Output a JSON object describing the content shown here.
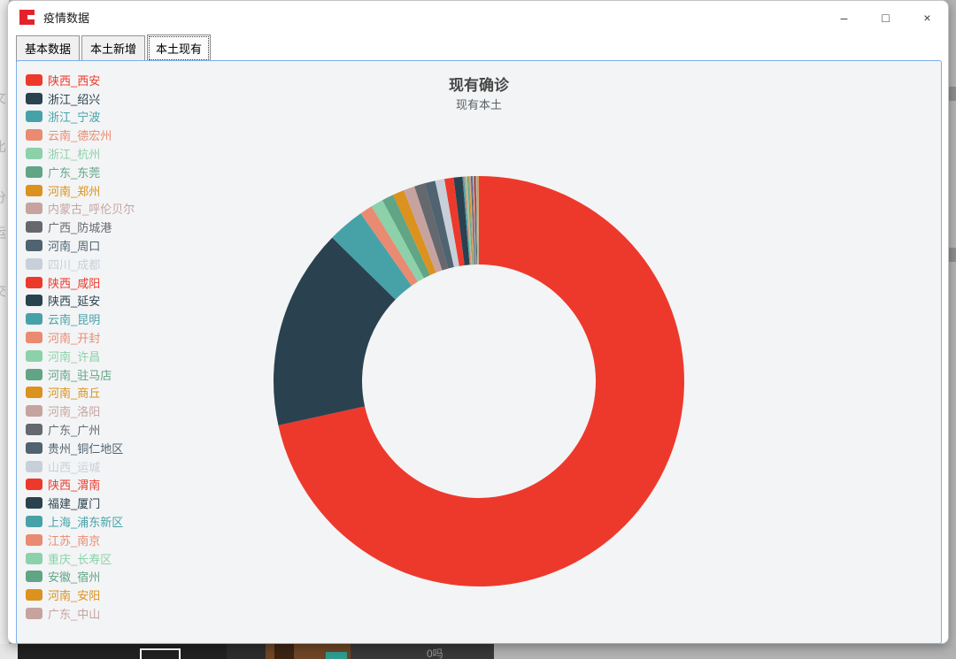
{
  "window": {
    "title": "疫情数据",
    "controls": [
      {
        "name": "minimize",
        "glyph": "–"
      },
      {
        "name": "maximize",
        "glyph": "□"
      },
      {
        "name": "close",
        "glyph": "×"
      }
    ]
  },
  "tabs": [
    {
      "label": "基本数据",
      "selected": false
    },
    {
      "label": "本土新增",
      "selected": false
    },
    {
      "label": "本土现有",
      "selected": true
    }
  ],
  "chart_data": {
    "type": "pie",
    "title": "现有确诊",
    "subtitle": "现有本土",
    "donut": true,
    "inner_radius_ratio": 0.57,
    "start_angle": "12-o'clock, clockwise",
    "legend_position": "left",
    "value_unit": "% share (estimated from arc angles; no numeric labels shown)",
    "palette": [
      "#ed392c",
      "#2a4250",
      "#47a2a8",
      "#e98b72",
      "#8cd1aa",
      "#60a585",
      "#db921e",
      "#c7a3a0",
      "#65686d",
      "#4f6370",
      "#c7d0d9"
    ],
    "items": [
      {
        "name": "陕西_西安",
        "value": 71.6
      },
      {
        "name": "浙江_绍兴",
        "value": 15.8
      },
      {
        "name": "浙江_宁波",
        "value": 2.9
      },
      {
        "name": "云南_德宏州",
        "value": 1.0
      },
      {
        "name": "浙江_杭州",
        "value": 0.98
      },
      {
        "name": "广东_东莞",
        "value": 0.92
      },
      {
        "name": "河南_郑州",
        "value": 0.9
      },
      {
        "name": "内蒙古_呼伦贝尔",
        "value": 0.88
      },
      {
        "name": "广西_防城港",
        "value": 0.85
      },
      {
        "name": "河南_周口",
        "value": 0.82
      },
      {
        "name": "四川_成都",
        "value": 0.73
      },
      {
        "name": "陕西_咸阳",
        "value": 0.72
      },
      {
        "name": "陕西_延安",
        "value": 0.7
      },
      {
        "name": "云南_昆明",
        "value": 0.13
      },
      {
        "name": "河南_开封",
        "value": 0.12
      },
      {
        "name": "河南_许昌",
        "value": 0.11
      },
      {
        "name": "河南_驻马店",
        "value": 0.1
      },
      {
        "name": "河南_商丘",
        "value": 0.09
      },
      {
        "name": "河南_洛阳",
        "value": 0.09
      },
      {
        "name": "广东_广州",
        "value": 0.08
      },
      {
        "name": "贵州_铜仁地区",
        "value": 0.08
      },
      {
        "name": "山西_运城",
        "value": 0.07
      },
      {
        "name": "陕西_渭南",
        "value": 0.07
      },
      {
        "name": "福建_厦门",
        "value": 0.06
      },
      {
        "name": "上海_浦东新区",
        "value": 0.06
      },
      {
        "name": "江苏_南京",
        "value": 0.05
      },
      {
        "name": "重庆_长寿区",
        "value": 0.05
      },
      {
        "name": "安徽_宿州",
        "value": 0.04
      },
      {
        "name": "河南_安阳",
        "value": 0.04
      },
      {
        "name": "广东_中山",
        "value": 0.03
      }
    ]
  },
  "background": {
    "left_edge_glyphs": [
      "文",
      "比",
      "分",
      "运",
      "交"
    ],
    "bottom_bar_text": "0吗"
  }
}
